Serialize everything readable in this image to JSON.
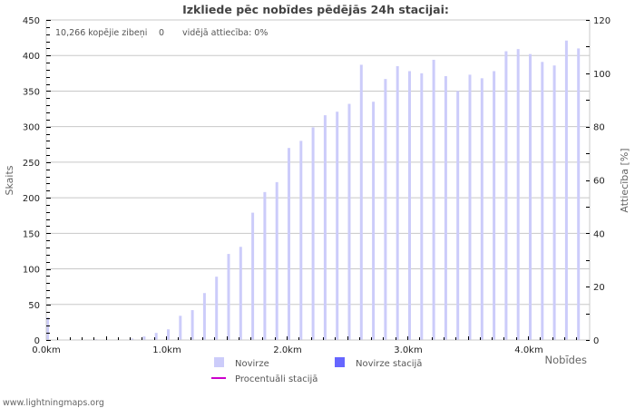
{
  "chart_data": {
    "type": "bar",
    "title": "Izkliede pēc nobīdes pēdējās 24h stacijai:",
    "xlabel": "Nobīdes",
    "ylabel": "Skaits",
    "y2label": "Attiecība [%]",
    "ylim": [
      0,
      450
    ],
    "y2lim": [
      0,
      120
    ],
    "yticks": [
      0,
      50,
      100,
      150,
      200,
      250,
      300,
      350,
      400,
      450
    ],
    "y2ticks": [
      0,
      20,
      40,
      60,
      80,
      100,
      120
    ],
    "xticks": [
      {
        "value": 0.0,
        "label": "0.0km"
      },
      {
        "value": 1.0,
        "label": "1.0km"
      },
      {
        "value": 2.0,
        "label": "2.0km"
      },
      {
        "value": 3.0,
        "label": "3.0km"
      },
      {
        "value": 4.0,
        "label": "4.0km"
      }
    ],
    "x_step_km": 0.1,
    "x": [
      0.0,
      0.1,
      0.2,
      0.3,
      0.4,
      0.5,
      0.6,
      0.7,
      0.8,
      0.9,
      1.0,
      1.1,
      1.2,
      1.3,
      1.4,
      1.5,
      1.6,
      1.7,
      1.8,
      1.9,
      2.0,
      2.1,
      2.2,
      2.3,
      2.4,
      2.5,
      2.6,
      2.7,
      2.8,
      2.9,
      3.0,
      3.1,
      3.2,
      3.3,
      3.4,
      3.5,
      3.6,
      3.7,
      3.8,
      3.9,
      4.0,
      4.1,
      4.2,
      4.3,
      4.4
    ],
    "series": [
      {
        "name": "Novirze",
        "color": "#ccccfa",
        "values": [
          32,
          0,
          0,
          0,
          1,
          0,
          0,
          2,
          5,
          10,
          15,
          34,
          42,
          66,
          89,
          121,
          131,
          179,
          208,
          222,
          270,
          280,
          299,
          316,
          321,
          332,
          387,
          335,
          367,
          385,
          378,
          375,
          394,
          371,
          350,
          373,
          368,
          378,
          406,
          409,
          402,
          391,
          386,
          421,
          410
        ]
      },
      {
        "name": "Novirze stacijā",
        "color": "#6666ff",
        "values": [
          0,
          0,
          0,
          0,
          0,
          0,
          0,
          0,
          0,
          0,
          0,
          0,
          0,
          0,
          0,
          0,
          0,
          0,
          0,
          0,
          0,
          0,
          0,
          0,
          0,
          0,
          0,
          0,
          0,
          0,
          0,
          0,
          0,
          0,
          0,
          0,
          0,
          0,
          0,
          0,
          0,
          0,
          0,
          0,
          0
        ]
      },
      {
        "name": "Procentuāli stacijā",
        "color": "#cc00cc",
        "type": "line",
        "values": []
      }
    ],
    "grid": true,
    "legend_position": "bottom"
  },
  "info": {
    "total_label": "10,266 kopējie zibeņi",
    "station_count": "0",
    "ratio_label": "vidējā attiecība: 0%"
  },
  "legend": [
    {
      "label": "Novirze",
      "color": "#ccccfa",
      "kind": "box"
    },
    {
      "label": "Novirze stacijā",
      "color": "#6666ff",
      "kind": "box"
    },
    {
      "label": "Procentuāli stacijā",
      "color": "#cc00cc",
      "kind": "line"
    }
  ],
  "footer": "www.lightningmaps.org"
}
